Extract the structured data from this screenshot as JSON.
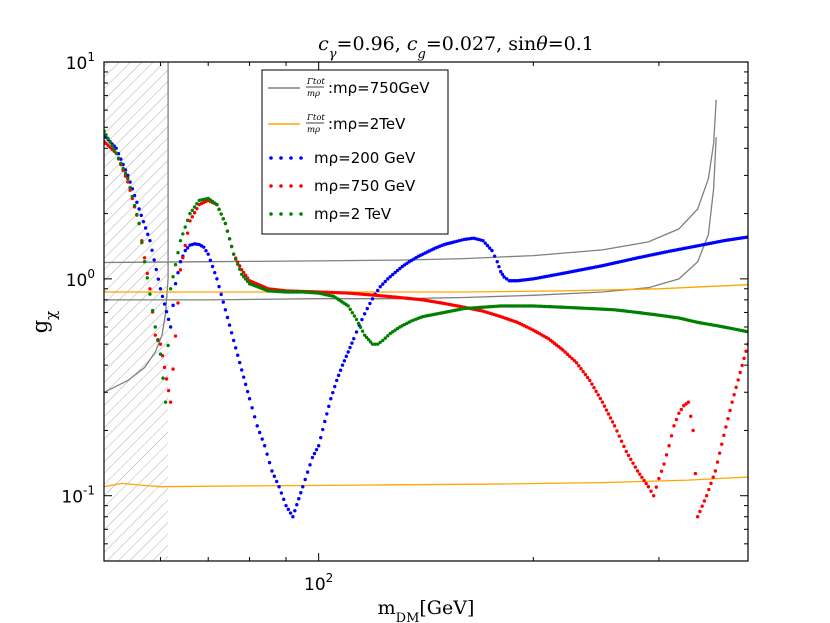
{
  "chart_data": {
    "type": "scatter",
    "title": "c_γ=0.96, c_g=0.027, sinθ=0.1",
    "title_parts": [
      {
        "t": "c",
        "it": true
      },
      {
        "t": "γ",
        "it": true,
        "sub": true
      },
      {
        "t": "=0.96, "
      },
      {
        "t": "c",
        "it": true
      },
      {
        "t": "g",
        "it": true,
        "sub": true
      },
      {
        "t": "=0.027, sin"
      },
      {
        "t": "θ",
        "it": true
      },
      {
        "t": "=0.1"
      }
    ],
    "xlabel": "m_DM[GeV]",
    "xlabel_parts": [
      {
        "t": "m"
      },
      {
        "t": "DM",
        "sub": true
      },
      {
        "t": "[GeV]"
      }
    ],
    "ylabel": "g_χ",
    "ylabel_parts": [
      {
        "t": "g"
      },
      {
        "t": "χ",
        "sub": true
      }
    ],
    "xscale": "log",
    "yscale": "log",
    "xlim": [
      50,
      400
    ],
    "ylim": [
      0.05,
      10
    ],
    "x_ticks": [
      {
        "value": 100,
        "base": "10",
        "exp": "2"
      }
    ],
    "y_ticks": [
      {
        "value": 0.1,
        "base": "10",
        "exp": "-1"
      },
      {
        "value": 1,
        "base": "10",
        "exp": "0"
      },
      {
        "value": 10,
        "base": "10",
        "exp": "1"
      }
    ],
    "excluded_region": {
      "x_from": 50,
      "x_to": 61.5,
      "style": "hatched"
    },
    "legend": [
      {
        "label_top": "Γtot",
        "label_bottom": "mρ",
        "label_rest": ":mρ=750GeV",
        "kind": "line",
        "color": "#808080"
      },
      {
        "label_top": "Γtot",
        "label_bottom": "mρ",
        "label_rest": ":mρ=2TeV",
        "kind": "line",
        "color": "#ffa500"
      },
      {
        "label": "mρ=200 GeV",
        "kind": "dots",
        "color": "#0000ff"
      },
      {
        "label": "mρ=750 GeV",
        "kind": "dots",
        "color": "#ff0000"
      },
      {
        "label": "mρ=2 TeV",
        "kind": "dots",
        "color": "#008000"
      }
    ],
    "lines": [
      {
        "name": "width 750GeV upper",
        "color": "#808080",
        "x": [
          50,
          70,
          100,
          130,
          160,
          200,
          250,
          290,
          320,
          340,
          352,
          358,
          361
        ],
        "y": [
          1.19,
          1.2,
          1.21,
          1.22,
          1.24,
          1.28,
          1.36,
          1.48,
          1.7,
          2.1,
          2.9,
          4.2,
          6.7
        ]
      },
      {
        "name": "width 750GeV lower",
        "color": "#808080",
        "x": [
          50,
          70,
          100,
          130,
          160,
          200,
          250,
          290,
          320,
          340,
          352,
          358,
          361
        ],
        "y": [
          0.8,
          0.8,
          0.81,
          0.81,
          0.82,
          0.84,
          0.87,
          0.91,
          1.0,
          1.2,
          1.6,
          2.6,
          4.5
        ]
      },
      {
        "name": "exclusion boundary",
        "color": "#808080",
        "x": [
          50,
          54,
          57,
          59,
          60.3,
          61,
          61.5,
          61.5
        ],
        "y": [
          0.3,
          0.34,
          0.39,
          0.46,
          0.55,
          0.7,
          1.0,
          10
        ]
      },
      {
        "name": "width 2TeV upper",
        "color": "#ffa500",
        "x": [
          50,
          80,
          120,
          160,
          220,
          300,
          400
        ],
        "y": [
          0.87,
          0.87,
          0.87,
          0.87,
          0.88,
          0.9,
          0.94
        ]
      },
      {
        "name": "width 2TeV lower",
        "color": "#ffa500",
        "x": [
          50,
          53,
          56,
          60,
          80,
          120,
          170,
          250,
          330,
          400
        ],
        "y": [
          0.11,
          0.114,
          0.112,
          0.11,
          0.111,
          0.112,
          0.113,
          0.115,
          0.118,
          0.122
        ]
      }
    ],
    "series": [
      {
        "name": "mρ=200 GeV",
        "color": "#0000ff",
        "x": [
          50,
          52,
          54,
          56,
          58,
          60,
          62,
          63,
          64,
          65,
          66,
          67,
          68,
          69,
          70,
          72,
          74,
          76,
          78,
          80,
          82,
          84,
          86,
          88,
          90,
          92,
          95,
          98,
          100,
          102,
          104,
          106,
          108,
          110,
          112,
          114,
          116,
          118,
          120,
          122,
          125,
          128,
          131,
          134,
          138,
          142,
          146,
          150,
          155,
          160,
          165,
          170,
          175,
          178,
          180,
          182,
          185,
          190,
          200,
          220,
          250,
          280,
          310,
          340,
          370,
          400
        ],
        "y": [
          4.6,
          4.0,
          3.0,
          2.1,
          1.5,
          0.9,
          0.6,
          0.95,
          1.2,
          1.35,
          1.43,
          1.45,
          1.44,
          1.4,
          1.3,
          1.0,
          0.72,
          0.52,
          0.38,
          0.28,
          0.21,
          0.17,
          0.13,
          0.11,
          0.09,
          0.08,
          0.11,
          0.15,
          0.17,
          0.22,
          0.28,
          0.34,
          0.4,
          0.46,
          0.53,
          0.61,
          0.69,
          0.77,
          0.85,
          0.92,
          1.0,
          1.07,
          1.14,
          1.2,
          1.27,
          1.33,
          1.39,
          1.44,
          1.48,
          1.52,
          1.54,
          1.5,
          1.35,
          1.2,
          1.08,
          1.02,
          0.98,
          0.98,
          1.0,
          1.06,
          1.15,
          1.25,
          1.34,
          1.42,
          1.5,
          1.56
        ]
      },
      {
        "name": "mρ=750 GeV",
        "color": "#ff0000",
        "x": [
          50,
          52,
          54,
          56,
          57,
          58,
          59,
          60,
          62,
          64,
          66,
          68,
          70,
          72,
          74,
          76,
          78,
          80,
          85,
          90,
          100,
          110,
          120,
          130,
          140,
          150,
          160,
          170,
          180,
          190,
          200,
          210,
          220,
          230,
          240,
          250,
          260,
          270,
          280,
          290,
          295,
          300,
          305,
          310,
          315,
          320,
          325,
          330,
          335,
          340,
          350,
          360,
          370,
          380,
          390,
          400
        ],
        "y": [
          4.3,
          3.8,
          2.8,
          1.8,
          1.25,
          0.9,
          0.55,
          0.5,
          0.27,
          1.1,
          1.85,
          2.2,
          2.3,
          2.2,
          1.8,
          1.3,
          1.1,
          0.98,
          0.9,
          0.88,
          0.87,
          0.86,
          0.84,
          0.82,
          0.8,
          0.77,
          0.74,
          0.71,
          0.67,
          0.63,
          0.58,
          0.53,
          0.47,
          0.41,
          0.34,
          0.27,
          0.21,
          0.16,
          0.13,
          0.11,
          0.1,
          0.12,
          0.14,
          0.17,
          0.21,
          0.24,
          0.26,
          0.27,
          0.2,
          0.08,
          0.1,
          0.13,
          0.19,
          0.27,
          0.37,
          0.5
        ]
      },
      {
        "name": "mρ=2 TeV",
        "color": "#008000",
        "x": [
          50,
          52,
          54,
          56,
          57,
          58,
          59,
          60,
          61,
          62,
          64,
          66,
          68,
          70,
          72,
          74,
          76,
          78,
          80,
          85,
          90,
          95,
          100,
          105,
          110,
          113,
          116,
          119,
          121,
          123,
          126,
          130,
          135,
          140,
          150,
          160,
          170,
          180,
          190,
          200,
          220,
          240,
          260,
          280,
          300,
          320,
          340,
          360,
          380,
          400
        ],
        "y": [
          4.8,
          3.8,
          2.9,
          1.8,
          1.2,
          0.85,
          0.6,
          0.45,
          0.27,
          0.9,
          1.5,
          2.0,
          2.3,
          2.35,
          2.2,
          1.8,
          1.3,
          1.05,
          0.95,
          0.88,
          0.87,
          0.87,
          0.86,
          0.83,
          0.75,
          0.65,
          0.55,
          0.5,
          0.5,
          0.52,
          0.56,
          0.6,
          0.64,
          0.67,
          0.7,
          0.73,
          0.74,
          0.75,
          0.75,
          0.75,
          0.74,
          0.73,
          0.72,
          0.7,
          0.68,
          0.66,
          0.63,
          0.61,
          0.59,
          0.57
        ]
      }
    ]
  }
}
